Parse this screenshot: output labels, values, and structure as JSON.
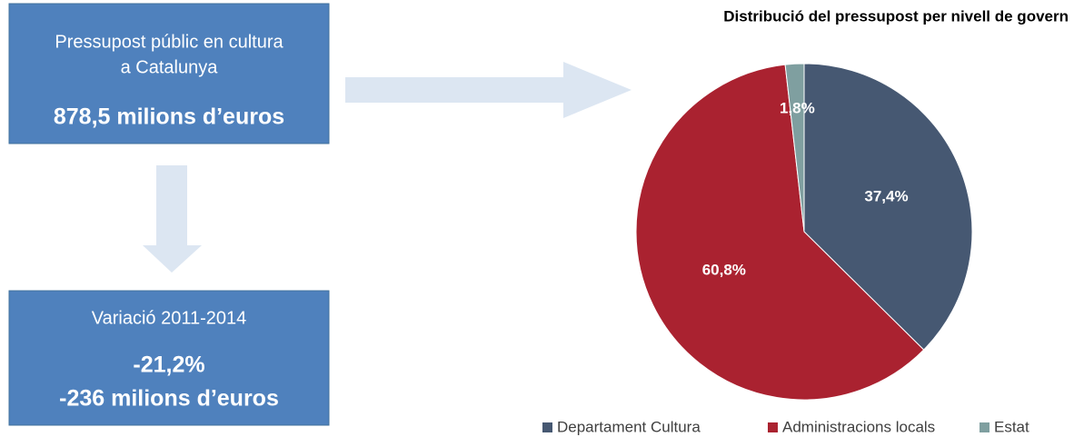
{
  "boxes": [
    {
      "lines": [
        "Pressupost públic en cultura",
        "a Catalunya"
      ],
      "highlights": [
        "878,5 milions d’euros"
      ]
    },
    {
      "lines": [
        "Variació 2011-2014"
      ],
      "highlights": [
        "-21,2%",
        "-236 milions d’euros"
      ]
    }
  ],
  "chart_data": {
    "type": "pie",
    "title": "Distribució del pressupost per nivell de govern",
    "categories": [
      "Departament Cultura",
      "Administracions locals",
      "Estat"
    ],
    "values": [
      37.4,
      60.8,
      1.8
    ],
    "value_labels": [
      "37,4%",
      "60,8%",
      "1,8%"
    ],
    "colors": [
      "#465872",
      "#aa2230",
      "#7f9fa0"
    ],
    "legend": "bottom"
  }
}
